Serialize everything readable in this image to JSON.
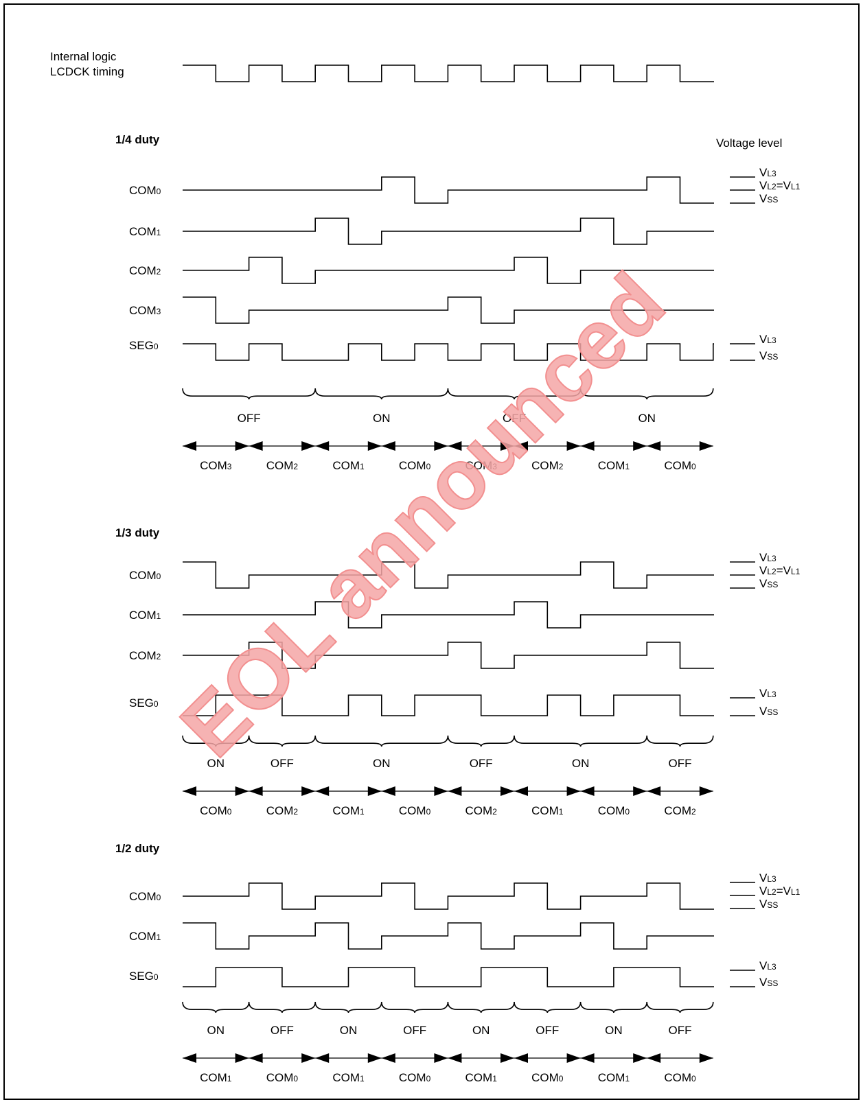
{
  "header": {
    "line1": "Internal logic",
    "line2": "LCDCK timing"
  },
  "voltage_level_title": "Voltage level",
  "watermark": "EOL announced",
  "sections": [
    {
      "title": "1/4 duty",
      "signals": [
        {
          "base": "COM",
          "sub": "0"
        },
        {
          "base": "COM",
          "sub": "1"
        },
        {
          "base": "COM",
          "sub": "2"
        },
        {
          "base": "COM",
          "sub": "3"
        },
        {
          "base": "SEG",
          "sub": "0"
        }
      ],
      "com_levels": [
        {
          "base": "V",
          "sub": "L3",
          "rest": "",
          "sub2": ""
        },
        {
          "base": "V",
          "sub": "L2",
          "rest": "=V",
          "sub2": "L1"
        },
        {
          "base": "V",
          "sub": "SS",
          "rest": "",
          "sub2": ""
        }
      ],
      "seg_levels": [
        {
          "base": "V",
          "sub": "L3"
        },
        {
          "base": "V",
          "sub": "SS"
        }
      ],
      "states": [
        "OFF",
        "ON",
        "OFF",
        "ON"
      ],
      "periods": [
        {
          "base": "COM",
          "sub": "3"
        },
        {
          "base": "COM",
          "sub": "2"
        },
        {
          "base": "COM",
          "sub": "1"
        },
        {
          "base": "COM",
          "sub": "0"
        },
        {
          "base": "COM",
          "sub": "3"
        },
        {
          "base": "COM",
          "sub": "2"
        },
        {
          "base": "COM",
          "sub": "1"
        },
        {
          "base": "COM",
          "sub": "0"
        }
      ]
    },
    {
      "title": "1/3 duty",
      "signals": [
        {
          "base": "COM",
          "sub": "0"
        },
        {
          "base": "COM",
          "sub": "1"
        },
        {
          "base": "COM",
          "sub": "2"
        },
        {
          "base": "SEG",
          "sub": "0"
        }
      ],
      "com_levels": [
        {
          "base": "V",
          "sub": "L3",
          "rest": "",
          "sub2": ""
        },
        {
          "base": "V",
          "sub": "L2",
          "rest": "=V",
          "sub2": "L1"
        },
        {
          "base": "V",
          "sub": "SS",
          "rest": "",
          "sub2": ""
        }
      ],
      "seg_levels": [
        {
          "base": "V",
          "sub": "L3"
        },
        {
          "base": "V",
          "sub": "SS"
        }
      ],
      "states": [
        "ON",
        "OFF",
        "ON",
        "OFF",
        "ON",
        "OFF"
      ],
      "periods": [
        {
          "base": "COM",
          "sub": "0"
        },
        {
          "base": "COM",
          "sub": "2"
        },
        {
          "base": "COM",
          "sub": "1"
        },
        {
          "base": "COM",
          "sub": "0"
        },
        {
          "base": "COM",
          "sub": "2"
        },
        {
          "base": "COM",
          "sub": "1"
        },
        {
          "base": "COM",
          "sub": "0"
        },
        {
          "base": "COM",
          "sub": "2"
        }
      ]
    },
    {
      "title": "1/2 duty",
      "signals": [
        {
          "base": "COM",
          "sub": "0"
        },
        {
          "base": "COM",
          "sub": "1"
        },
        {
          "base": "SEG",
          "sub": "0"
        }
      ],
      "com_levels": [
        {
          "base": "V",
          "sub": "L3",
          "rest": "",
          "sub2": ""
        },
        {
          "base": "V",
          "sub": "L2",
          "rest": "=V",
          "sub2": "L1"
        },
        {
          "base": "V",
          "sub": "SS",
          "rest": "",
          "sub2": ""
        }
      ],
      "seg_levels": [
        {
          "base": "V",
          "sub": "L3"
        },
        {
          "base": "V",
          "sub": "SS"
        }
      ],
      "states": [
        "ON",
        "OFF",
        "ON",
        "OFF",
        "ON",
        "OFF",
        "ON",
        "OFF"
      ],
      "periods": [
        {
          "base": "COM",
          "sub": "1"
        },
        {
          "base": "COM",
          "sub": "0"
        },
        {
          "base": "COM",
          "sub": "1"
        },
        {
          "base": "COM",
          "sub": "0"
        },
        {
          "base": "COM",
          "sub": "1"
        },
        {
          "base": "COM",
          "sub": "0"
        },
        {
          "base": "COM",
          "sub": "1"
        },
        {
          "base": "COM",
          "sub": "0"
        }
      ]
    }
  ]
}
